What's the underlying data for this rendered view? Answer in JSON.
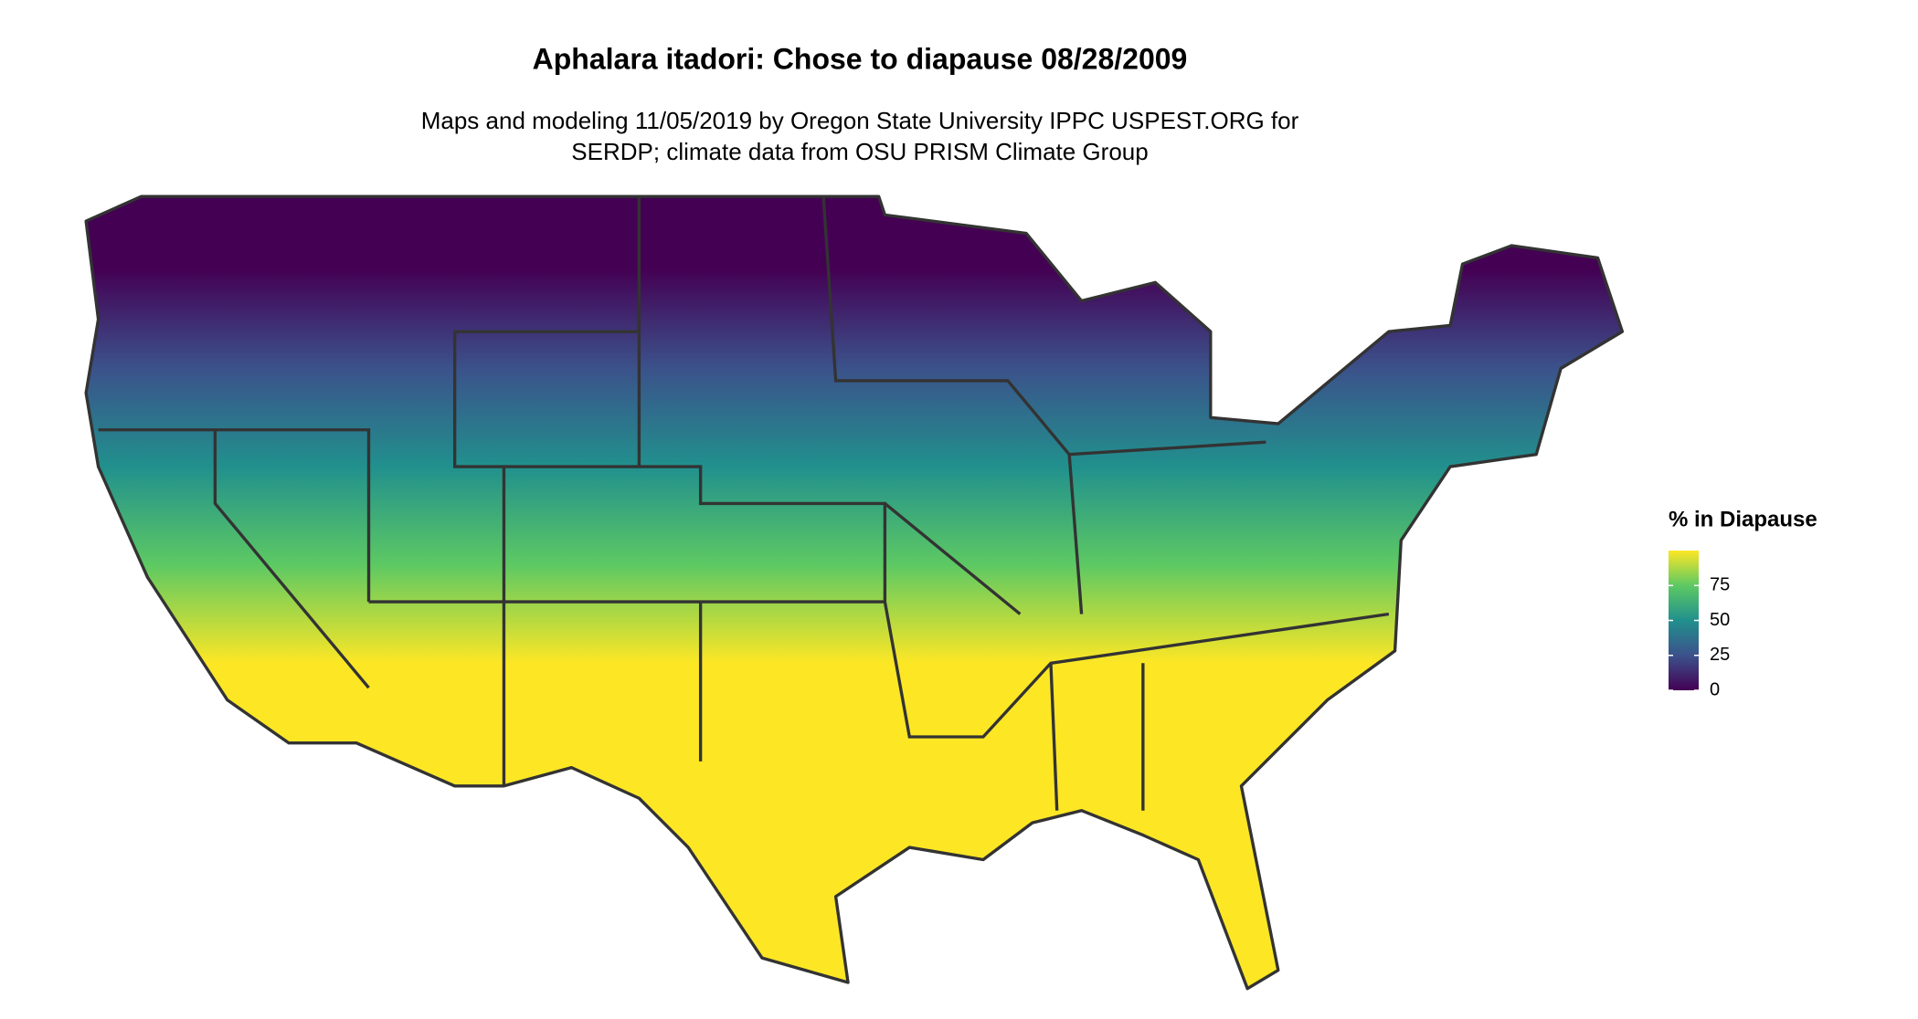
{
  "title": "Aphalara itadori: Chose to diapause 08/28/2009",
  "subtitle": [
    "Maps and modeling 11/05/2019 by Oregon State University IPPC USPEST.ORG for",
    "SERDP; climate data from OSU PRISM Climate Group"
  ],
  "legend": {
    "title": "% in Diapause",
    "limits": [
      0,
      100
    ],
    "ticks": [
      0,
      25,
      50,
      75
    ],
    "colors": [
      "#440154",
      "#3b528b",
      "#21908d",
      "#5dc963",
      "#fde725"
    ]
  }
}
